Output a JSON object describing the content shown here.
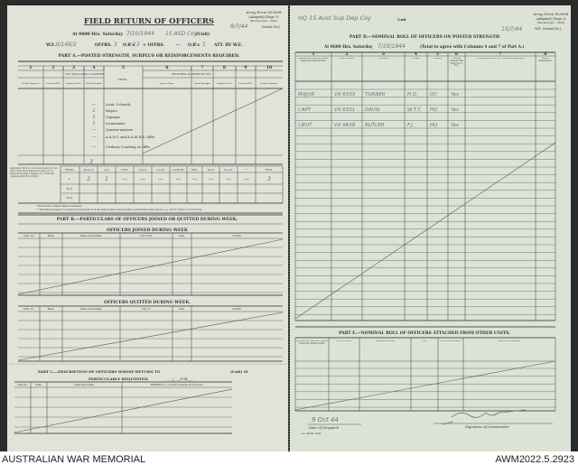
{
  "left_page": {
    "form_ref": [
      "Army Form W.3008",
      "(Adapted) (Page 1)",
      "(Revised Jan., 1943)"
    ],
    "serial_no": {
      "value": "9/7/44",
      "label": "(Serial No.)"
    },
    "title": "FIELD RETURN OF OFFICERS",
    "at_line": {
      "prefix": "At 0600 Hrs. Saturday",
      "date": "7/10/1944",
      "unit": "15 ASD Coy",
      "unit_label": "(Unit)"
    },
    "we_line": {
      "we_label": "W.E.",
      "we_value": "II/148/2",
      "offrs_label": "OFFRS.",
      "offrs_value": "3",
      "ors_label": "O.R's",
      "ors_value": "13",
      "plus_offrs_label": "+ OFFRS.",
      "plus_offrs_value": "—",
      "ors2_label": "O.R's",
      "ors2_value": "1",
      "att_label": "ATT. BY W.E."
    },
    "part_a": {
      "title": "PART A.—POSTED STRENGTH, SURPLUS OR REINFORCEMENTS REQUIRED.",
      "col_numbers": [
        "1",
        "2",
        "3",
        "4",
        "5",
        "6",
        "7",
        "8",
        "9",
        "10"
      ],
      "group_we": "W.E. EXCLUDING ATTACHED.",
      "group_att": "ATTACHED ALLOWED BY W.E.",
      "subheaders": [
        "Reinfts Required.",
        "Deficient W.E.",
        "Surplus to W.E.",
        "Posted Strength.",
        "DETAIL.",
        "Arm or Corps.",
        "Posted Strength.",
        "Surplus to W.E.",
        "Deficient W.E.",
        "Reinfts Required."
      ],
      "detail_rows": [
        "Lieut.-Colonels",
        "Majors",
        "Captains",
        "Lieutenants",
        "Quarter-masters",
        "A.A.N.S. and A.A.M.W.S. Offrs.",
        "Civilians Counting as Offrs."
      ],
      "posted_strength_values": [
        "—",
        "1",
        "1",
        "1",
        "—",
        "—",
        "—"
      ],
      "posted_total": "3",
      "analysis_note": "Analysis of Part A to be shown here for ALL units. Only units marked as para. 10 of instructions that complete of 1 form will complete Part B(1) & B(2).",
      "analysis_headers": [
        "DETAIL.",
        "2nd A.I.F.",
        "A.I.F.",
        "C.M.F.",
        "A.W.A.S.",
        "A.A.N.S.",
        "A.A.M.W.S.",
        "CIVIL.",
        "R.A.N.",
        "R.A.A.F.",
        "* *",
        "TOTAL."
      ],
      "analysis_rows": [
        {
          "label": "A.",
          "values": [
            "2",
            "1",
            "—",
            "—",
            "—",
            "—",
            "—",
            "—",
            "—",
            "—",
            "3"
          ]
        },
        {
          "label": "B.(1)",
          "values": []
        },
        {
          "label": "B.(2)",
          "values": []
        }
      ],
      "footnotes": [
        "* Insert detail of higher ranks as necessary.",
        "* * Personnel belonging to a category not provided for in the analysis will be shown in this col. Particulars will be shown, e.g., 20 U.K. Forces, 10 N.Z. Forces."
      ]
    },
    "part_b": {
      "title": "PART B.—PARTICULARS OF OFFICERS JOINED OR QUITTED DURING WEEK.",
      "joined_title": "OFFICERS JOINED DURING WEEK",
      "joined_headers": [
        "Army No.",
        "Rank.",
        "Name and Initials.",
        "Unit From.",
        "Date.",
        "CAUSE."
      ],
      "quitted_title": "OFFICERS QUITTED DURING WEEK.",
      "quitted_headers": [
        "Army No.",
        "Rank.",
        "Name and Initials.",
        "Unit To.",
        "Date.",
        "CAUSE."
      ]
    },
    "part_c": {
      "title": "PART C.—DESCRIPTION OF OFFICERS WHOSE RETURN TO",
      "unit_label": "(Unit) IS",
      "line2": "PARTICULARLY REQUESTED.",
      "date_blank": "___/___/194___.",
      "headers": [
        "Army No.",
        "Rank.",
        "Name and Initials.",
        "REMARKS (i.e., present whereabouts if known)."
      ]
    }
  },
  "right_page": {
    "unit_value": "HQ 15 Aust Sup Dep Coy",
    "unit_label": "Unit",
    "form_ref": [
      "Army Form W.3008",
      "(Adapted) (Page 2)",
      "(Revised Jan., 1943)"
    ],
    "serial_no": {
      "value": "15/7/44",
      "label": "W.E. (Serial No.)"
    },
    "part_d": {
      "title": "PART D.—NOMINAL ROLL OF OFFICERS ON POSTED STRENGTH",
      "at_line": {
        "prefix": "At 0600 Hrs. Saturday",
        "date": "7/10/1944",
        "suffix": "(Total to agree with Columns 4 and 7 of Part A.)"
      },
      "col_numbers": [
        "1",
        "2",
        "3",
        "4",
        "5",
        "6",
        "7",
        "8"
      ],
      "headers": [
        "Substantive Rank and Higher Temporary Rank if Held.",
        "Army Number.",
        "Surname.",
        "Initials.",
        "Posting.",
        "Whether present with Unit (Yes or No).",
        "If not present with Unit, state how employed.",
        "Date of Detachment."
      ],
      "rows": [
        [
          "MAJOR",
          "VX 6333",
          "TURNER",
          "H.G.",
          "OC",
          "Yes"
        ],
        [
          "CAPT",
          "VX 6331",
          "DAVIS",
          "W.T.T.",
          "HQ",
          "Yes"
        ],
        [
          "LIEUT",
          "VX 6638",
          "BUTLER",
          "F.J.",
          "HQ",
          "Yes"
        ]
      ]
    },
    "part_e": {
      "title": "PART E.—NOMINAL ROLL OF OFFICERS ATTACHED FROM OTHER UNITS.",
      "headers": [
        "Substantive Rank and Higher Temporary Rank if Held.",
        "Army Number.",
        "Name and Initials.",
        "Unit.",
        "Date of Attachment.",
        "Nature of Attachment."
      ]
    },
    "despatch": {
      "value": "9 Oct 44",
      "label": "Date of Despatch"
    },
    "signature": {
      "label": "Signature of Commander"
    },
    "print_code": "A.A. 100 Ms 15/43"
  },
  "caption": {
    "left": "AUSTRALIAN WAR MEMORIAL",
    "right": "AWM2022.5.2923"
  },
  "colors": {
    "paper": "#dfe3d8",
    "ink": "#333333",
    "pencil": "#6a6f78",
    "background": "#2b2b2b"
  }
}
